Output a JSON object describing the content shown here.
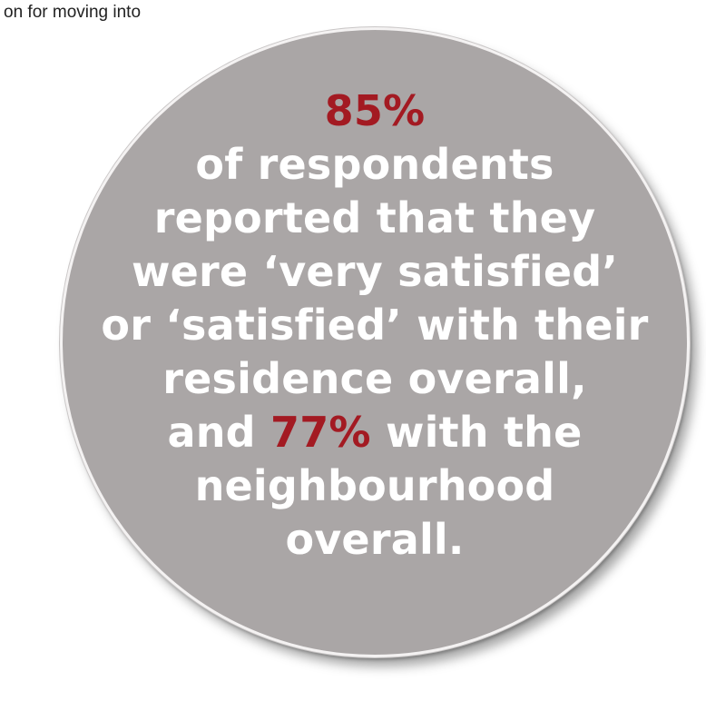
{
  "top_text": "on for moving into",
  "colors": {
    "circle_fill": "#aaa6a6",
    "circle_rim": "#f4f2f2",
    "text": "#ffffff",
    "accent": "#a31a22"
  },
  "stat": {
    "headline": "85%",
    "line1": "of respondents",
    "line2": "reported that they",
    "line3": "were ‘very satisfied’",
    "line4": "or ‘satisfied’ with their",
    "line5": "residence overall,",
    "line6_before": "and ",
    "line6_accent": "77%",
    "line6_after": " with the",
    "line7": "neighbourhood",
    "line8": "overall."
  }
}
